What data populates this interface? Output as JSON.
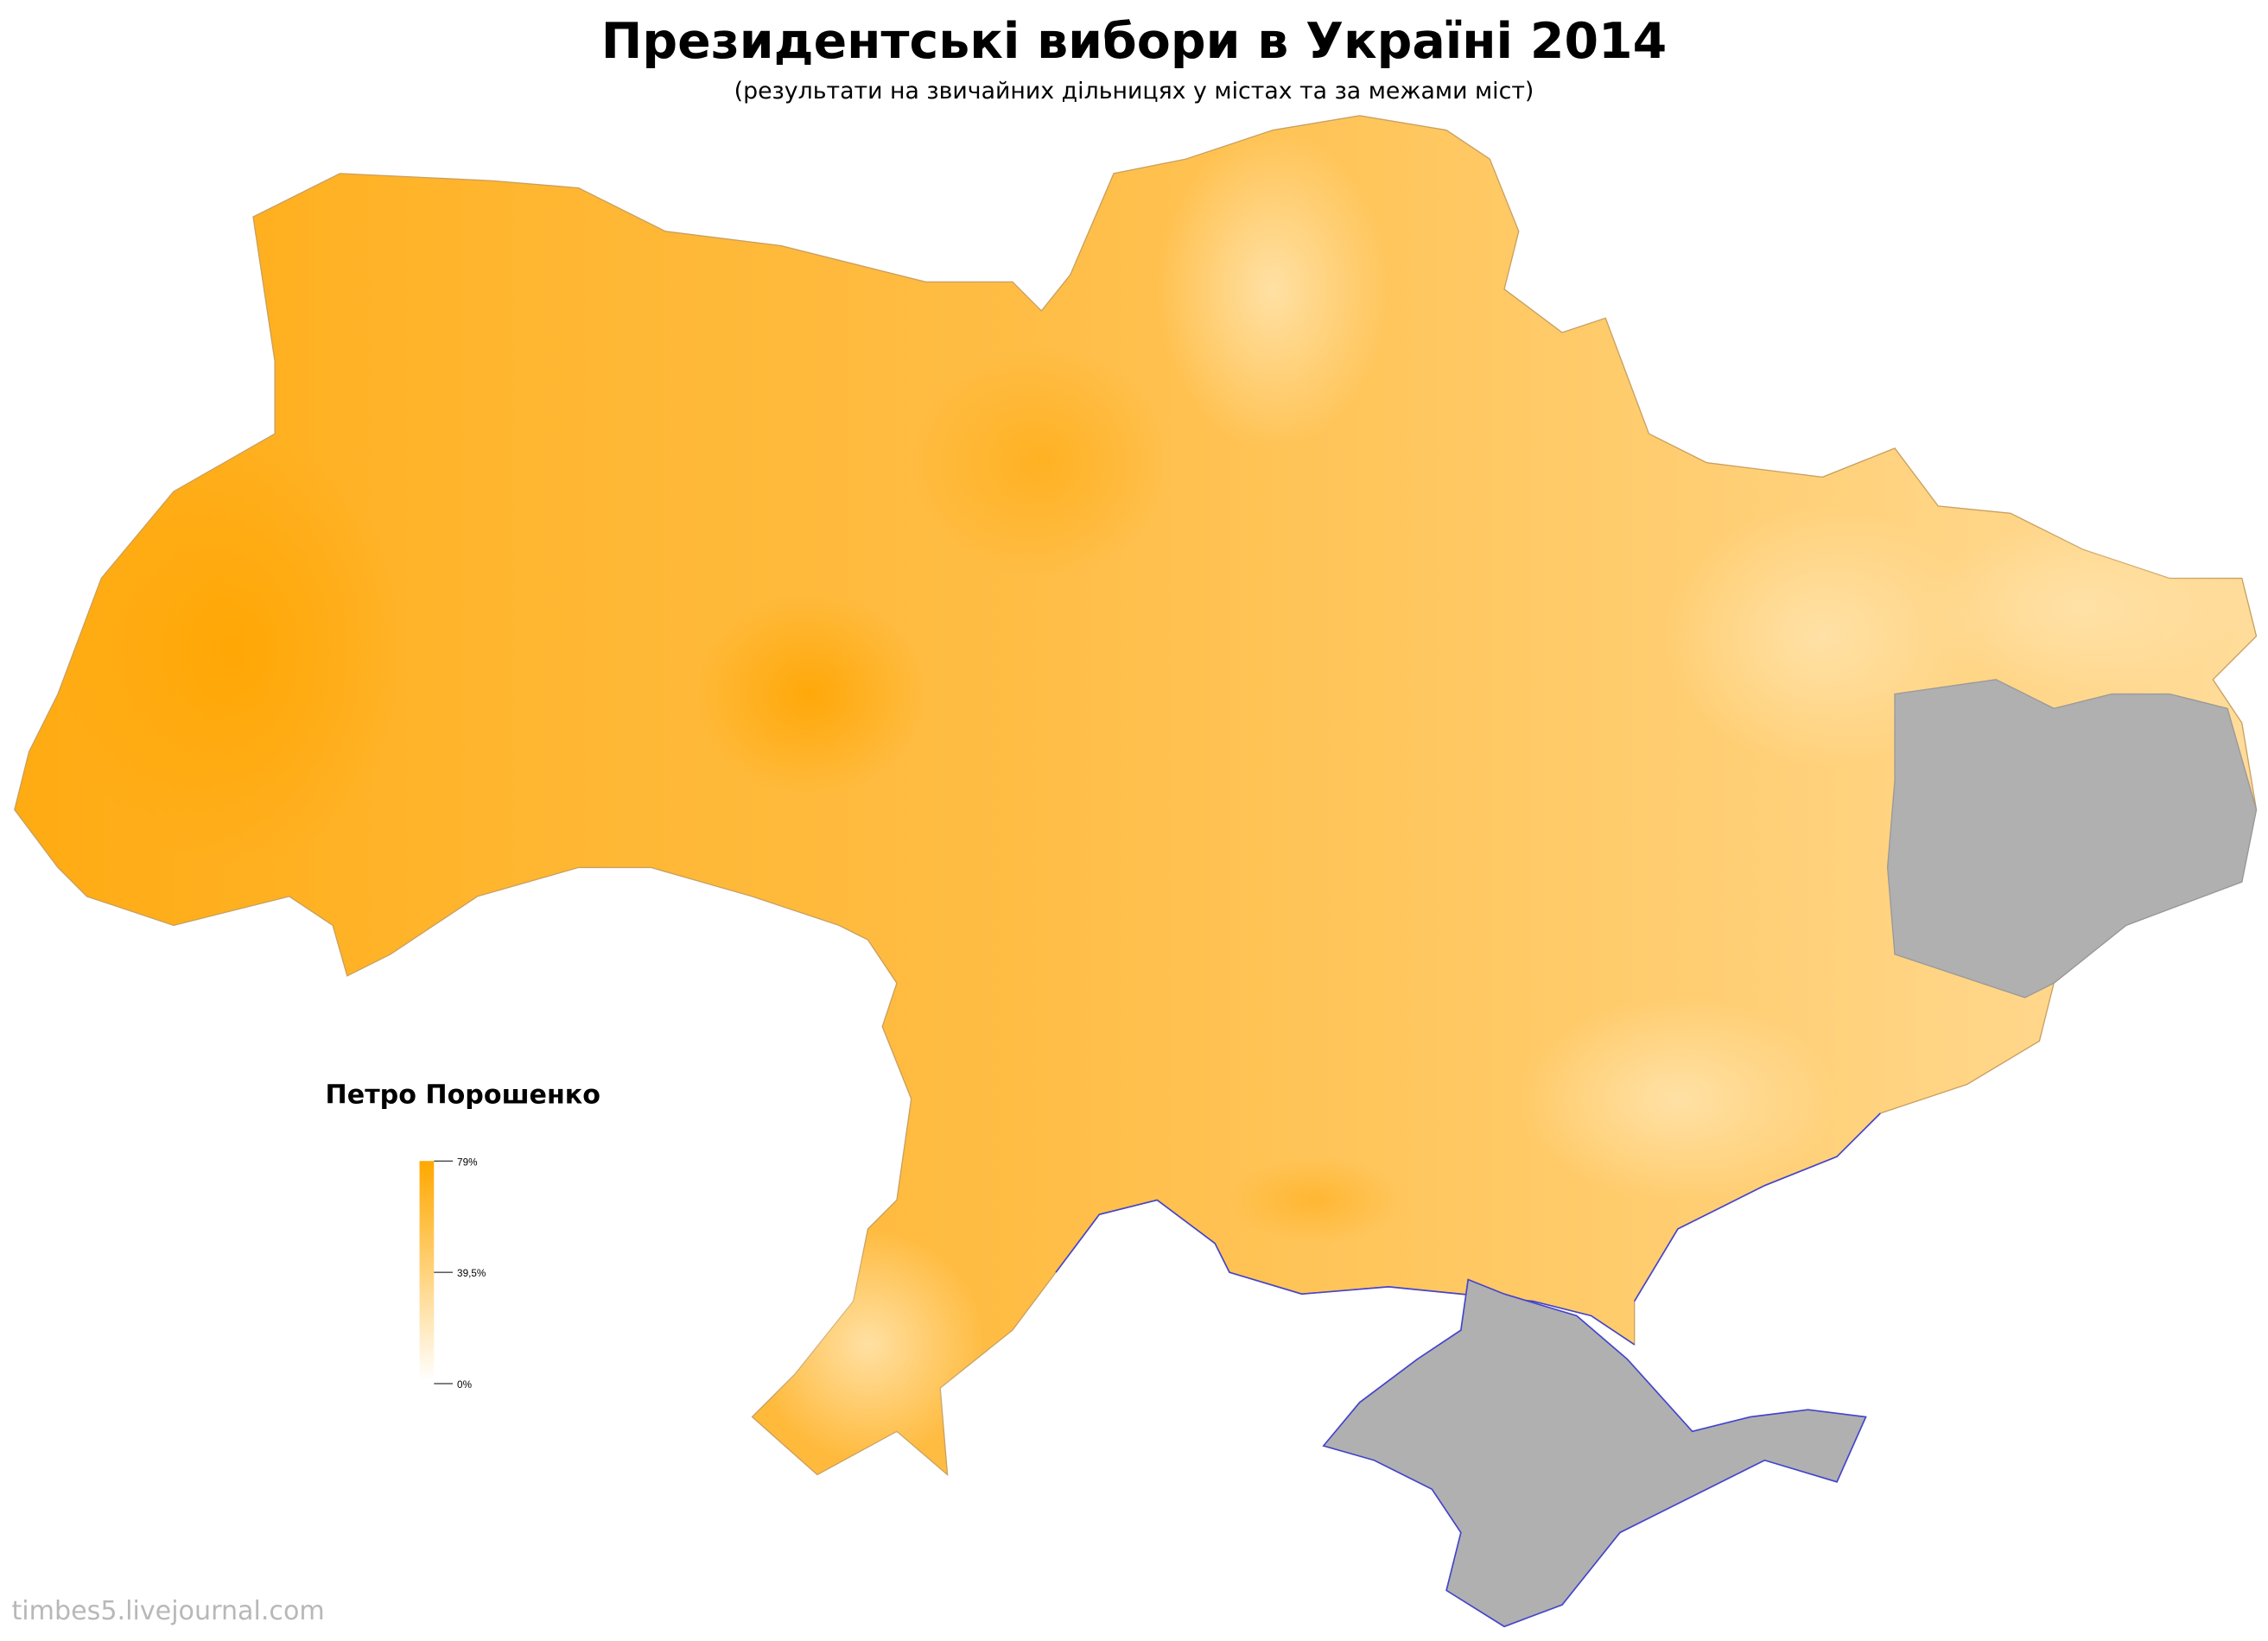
{
  "header": {
    "title": "Президентські вибори в Україні 2014",
    "subtitle": "(результати на звичайних дільницях у містах та за межами міст)"
  },
  "legend": {
    "candidate": "Петро Порошенко",
    "scale_ticks": [
      "79%",
      "39,5%",
      "0%"
    ],
    "max_value_percent": 79,
    "min_value_percent": 0,
    "color_max": "#ffa800",
    "color_min": "#ffffff"
  },
  "map": {
    "no_data_color": "#b0b0b0",
    "no_data_regions": [
      "Crimea",
      "Donbas (occupied areas)"
    ],
    "coastline_color": "#3333cc"
  },
  "watermark": "timbes5.livejournal.com"
}
